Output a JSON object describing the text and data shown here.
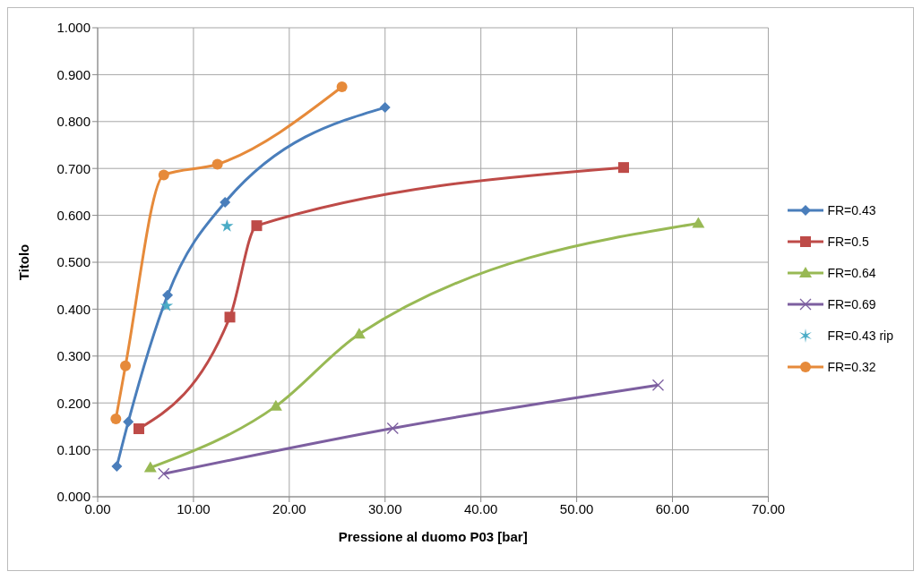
{
  "chart_data": {
    "type": "line",
    "xlabel": "Pressione al duomo P03 [bar]",
    "ylabel": "Titolo",
    "xlim": [
      0,
      70
    ],
    "xticks": [
      {
        "value": 0,
        "label": "0.00"
      },
      {
        "value": 10,
        "label": "10.00"
      },
      {
        "value": 20,
        "label": "20.00"
      },
      {
        "value": 30,
        "label": "30.00"
      },
      {
        "value": 40,
        "label": "40.00"
      },
      {
        "value": 50,
        "label": "50.00"
      },
      {
        "value": 60,
        "label": "60.00"
      },
      {
        "value": 70,
        "label": "70.00"
      }
    ],
    "ylim": [
      0,
      1
    ],
    "yticks": [
      {
        "value": 0,
        "label": "0.000"
      },
      {
        "value": 0.1,
        "label": "0.100"
      },
      {
        "value": 0.2,
        "label": "0.200"
      },
      {
        "value": 0.3,
        "label": "0.300"
      },
      {
        "value": 0.4,
        "label": "0.400"
      },
      {
        "value": 0.5,
        "label": "0.500"
      },
      {
        "value": 0.6,
        "label": "0.600"
      },
      {
        "value": 0.7,
        "label": "0.700"
      },
      {
        "value": 0.8,
        "label": "0.800"
      },
      {
        "value": 0.9,
        "label": "0.900"
      },
      {
        "value": 1,
        "label": "1.000"
      }
    ],
    "grid": true,
    "legend": "right",
    "series": [
      {
        "name": "FR=0.43",
        "color": "#4a7ebb",
        "marker": "diamond",
        "x": [
          2.0,
          3.2,
          7.3,
          13.3,
          30.0
        ],
        "values": [
          0.065,
          0.16,
          0.43,
          0.628,
          0.83
        ]
      },
      {
        "name": "FR=0.5",
        "color": "#be4b48",
        "marker": "square",
        "x": [
          4.3,
          13.8,
          16.6,
          54.9
        ],
        "values": [
          0.145,
          0.383,
          0.578,
          0.702
        ]
      },
      {
        "name": "FR=0.64",
        "color": "#98b954",
        "marker": "triangle",
        "x": [
          5.5,
          18.6,
          27.3,
          62.7
        ],
        "values": [
          0.062,
          0.193,
          0.347,
          0.583
        ]
      },
      {
        "name": "FR=0.69",
        "color": "#7d5fa0",
        "marker": "cross",
        "x": [
          6.9,
          30.8,
          58.5
        ],
        "values": [
          0.049,
          0.146,
          0.238
        ]
      },
      {
        "name": "FR=0.43 rip",
        "type": "scatter",
        "color": "#4bacc6",
        "marker": "star",
        "x": [
          7.2,
          13.5
        ],
        "values": [
          0.407,
          0.577
        ]
      },
      {
        "name": "FR=0.32",
        "color": "#e68a3a",
        "marker": "circle",
        "x": [
          1.9,
          2.9,
          6.9,
          12.5,
          25.5
        ],
        "values": [
          0.166,
          0.279,
          0.686,
          0.709,
          0.874
        ]
      }
    ]
  }
}
